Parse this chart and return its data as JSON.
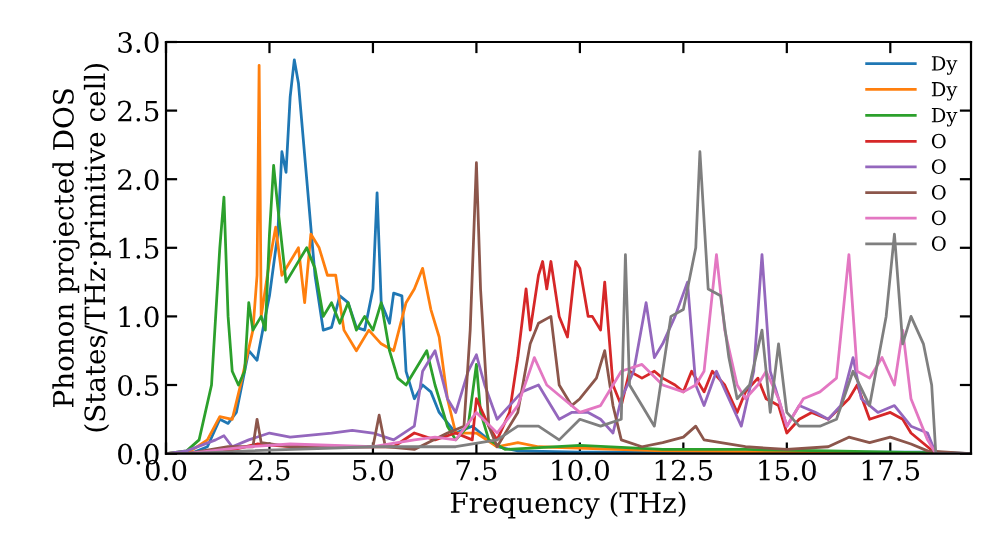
{
  "chart_data": {
    "type": "line",
    "xlabel": "Frequency (THz)",
    "ylabel": "Phonon projected DOS\n(States/THz·primitive cell)",
    "xlim": [
      0,
      19.45
    ],
    "ylim": [
      0,
      3.0
    ],
    "xticks": [
      {
        "value": 0,
        "label": "0.0"
      },
      {
        "value": 2.5,
        "label": "2.5"
      },
      {
        "value": 5,
        "label": "5.0"
      },
      {
        "value": 7.5,
        "label": "7.5"
      },
      {
        "value": 10,
        "label": "10.0"
      },
      {
        "value": 12.5,
        "label": "12.5"
      },
      {
        "value": 15,
        "label": "15.0"
      },
      {
        "value": 17.5,
        "label": "17.5"
      }
    ],
    "yticks": [
      {
        "value": 0,
        "label": "0.0"
      },
      {
        "value": 0.5,
        "label": "0.5"
      },
      {
        "value": 1,
        "label": "1.0"
      },
      {
        "value": 1.5,
        "label": "1.5"
      },
      {
        "value": 2,
        "label": "2.0"
      },
      {
        "value": 2.5,
        "label": "2.5"
      },
      {
        "value": 3,
        "label": "3.0"
      }
    ],
    "grid": false,
    "legend": "top right",
    "marker": "none",
    "line_style": "solid",
    "series": [
      {
        "name": "Dy",
        "color": "#1f77b4",
        "x": [
          0,
          0.6,
          1.0,
          1.3,
          1.5,
          1.7,
          2.0,
          2.2,
          2.4,
          2.5,
          2.7,
          2.8,
          2.9,
          3.0,
          3.1,
          3.2,
          3.4,
          3.6,
          3.8,
          4.0,
          4.2,
          4.4,
          4.6,
          4.8,
          5.0,
          5.1,
          5.2,
          5.4,
          5.5,
          5.7,
          5.8,
          6.0,
          6.2,
          6.4,
          6.6,
          7.0,
          7.4,
          7.6,
          8.0,
          8.5,
          10,
          18.6,
          19.4
        ],
        "values": [
          0,
          0,
          0.05,
          0.25,
          0.22,
          0.3,
          0.75,
          0.68,
          1.0,
          1.15,
          1.6,
          2.2,
          2.05,
          2.6,
          2.87,
          2.7,
          2.0,
          1.3,
          0.9,
          0.92,
          1.15,
          1.1,
          0.92,
          0.9,
          1.2,
          1.9,
          1.1,
          0.95,
          1.17,
          1.15,
          0.6,
          0.4,
          0.5,
          0.45,
          0.3,
          0.15,
          0.2,
          0.15,
          0.05,
          0.02,
          0.01,
          0.01,
          0
        ]
      },
      {
        "name": "Dy",
        "color": "#ff7f0e",
        "x": [
          0,
          0.6,
          1.0,
          1.3,
          1.6,
          1.8,
          2.1,
          2.2,
          2.25,
          2.3,
          2.5,
          2.65,
          2.8,
          3.0,
          3.2,
          3.35,
          3.5,
          3.7,
          3.9,
          4.1,
          4.3,
          4.6,
          4.9,
          5.2,
          5.5,
          5.8,
          6.0,
          6.2,
          6.4,
          6.6,
          6.8,
          7.0,
          7.5,
          8.0,
          8.5,
          9.0,
          12,
          19.4
        ],
        "values": [
          0,
          0.02,
          0.1,
          0.27,
          0.25,
          0.5,
          0.9,
          1.3,
          2.83,
          1.0,
          1.4,
          1.65,
          1.3,
          1.4,
          1.5,
          1.1,
          1.6,
          1.5,
          1.3,
          1.3,
          0.9,
          0.75,
          0.9,
          0.8,
          0.75,
          1.1,
          1.2,
          1.35,
          1.05,
          0.85,
          0.4,
          0.15,
          0.15,
          0.05,
          0.08,
          0.05,
          0.02,
          0
        ]
      },
      {
        "name": "Dy",
        "color": "#2ca02c",
        "x": [
          0,
          0.5,
          0.8,
          1.1,
          1.3,
          1.4,
          1.5,
          1.6,
          1.75,
          1.9,
          2.0,
          2.1,
          2.3,
          2.4,
          2.5,
          2.6,
          2.7,
          2.9,
          3.1,
          3.4,
          3.6,
          3.8,
          4.0,
          4.2,
          4.4,
          4.6,
          4.8,
          5.0,
          5.2,
          5.4,
          5.6,
          5.8,
          6.1,
          6.3,
          6.5,
          6.8,
          7.0,
          7.3,
          7.5,
          7.6,
          7.8,
          8.2,
          10,
          12,
          14,
          16,
          19.4
        ],
        "values": [
          0,
          0.02,
          0.1,
          0.5,
          1.5,
          1.87,
          1.0,
          0.6,
          0.5,
          0.6,
          1.1,
          0.9,
          1.0,
          0.9,
          1.6,
          2.1,
          1.8,
          1.25,
          1.35,
          1.5,
          1.35,
          1.0,
          1.1,
          0.95,
          1.1,
          0.9,
          1.0,
          0.9,
          1.1,
          0.75,
          0.55,
          0.5,
          0.65,
          0.75,
          0.5,
          0.2,
          0.1,
          0.2,
          0.65,
          0.3,
          0.1,
          0.03,
          0.06,
          0.03,
          0.03,
          0.02,
          0
        ]
      },
      {
        "name": "O",
        "color": "#d62728",
        "x": [
          0,
          0.5,
          1.5,
          2.2,
          3,
          5,
          5.5,
          6.0,
          6.5,
          7.0,
          7.4,
          7.5,
          7.8,
          8.0,
          8.3,
          8.5,
          8.7,
          8.8,
          9.0,
          9.1,
          9.2,
          9.3,
          9.5,
          9.7,
          9.9,
          10.0,
          10.2,
          10.3,
          10.5,
          10.6,
          10.8,
          11.0,
          11.2,
          11.5,
          11.8,
          12.0,
          12.3,
          12.5,
          12.7,
          13.0,
          13.2,
          13.5,
          13.8,
          14.0,
          14.3,
          14.5,
          14.8,
          15.0,
          15.3,
          15.6,
          16.0,
          16.5,
          16.7,
          17.0,
          17.5,
          17.8,
          18.0,
          18.4,
          18.6,
          19.4
        ],
        "values": [
          0,
          0,
          0.02,
          0.07,
          0.05,
          0.05,
          0.05,
          0.15,
          0.1,
          0.15,
          0.1,
          0.4,
          0.2,
          0.1,
          0.3,
          0.7,
          1.2,
          0.9,
          1.3,
          1.4,
          1.2,
          1.4,
          1.0,
          0.85,
          1.4,
          1.35,
          1.0,
          1.0,
          0.9,
          1.25,
          0.5,
          0.35,
          0.6,
          0.55,
          0.6,
          0.55,
          0.5,
          0.45,
          0.6,
          0.45,
          0.6,
          0.5,
          0.3,
          0.45,
          0.55,
          0.4,
          0.35,
          0.15,
          0.25,
          0.3,
          0.25,
          0.4,
          0.5,
          0.25,
          0.3,
          0.25,
          0.15,
          0.05,
          0,
          0
        ]
      },
      {
        "name": "O",
        "color": "#9467bd",
        "x": [
          0,
          0.5,
          1.2,
          1.4,
          1.6,
          2.0,
          2.5,
          3.0,
          4.0,
          4.5,
          5.0,
          5.5,
          6.0,
          6.2,
          6.5,
          6.8,
          7.0,
          7.3,
          7.5,
          7.7,
          8.0,
          8.3,
          8.6,
          9.0,
          9.2,
          9.5,
          9.8,
          10.2,
          10.5,
          10.8,
          11.0,
          11.3,
          11.6,
          11.8,
          12.0,
          12.3,
          12.6,
          12.8,
          13.0,
          13.3,
          13.6,
          13.9,
          14.2,
          14.4,
          14.6,
          14.8,
          15.0,
          15.3,
          15.7,
          16.0,
          16.3,
          16.6,
          16.8,
          17.2,
          17.6,
          18.0,
          18.4,
          18.6,
          19.4
        ],
        "values": [
          0,
          0.02,
          0.1,
          0.13,
          0.05,
          0.1,
          0.15,
          0.12,
          0.15,
          0.17,
          0.15,
          0.1,
          0.2,
          0.6,
          0.75,
          0.4,
          0.3,
          0.6,
          0.72,
          0.5,
          0.25,
          0.35,
          0.45,
          0.5,
          0.4,
          0.25,
          0.3,
          0.3,
          0.25,
          0.15,
          0.4,
          0.6,
          1.1,
          0.7,
          0.8,
          1.0,
          1.25,
          0.5,
          0.35,
          0.6,
          0.4,
          0.2,
          0.6,
          1.45,
          0.6,
          0.4,
          0.2,
          0.35,
          0.3,
          0.25,
          0.35,
          0.7,
          0.4,
          0.3,
          0.35,
          0.2,
          0.15,
          0,
          0
        ]
      },
      {
        "name": "O",
        "color": "#8c564b",
        "x": [
          0,
          0.5,
          1.5,
          2.1,
          2.2,
          2.3,
          3,
          4,
          5.0,
          5.15,
          5.3,
          6,
          6.8,
          7.2,
          7.35,
          7.5,
          7.6,
          7.8,
          8,
          8.5,
          8.8,
          9.0,
          9.3,
          9.5,
          9.8,
          10.0,
          10.4,
          10.6,
          10.8,
          11.0,
          11.5,
          12,
          12.5,
          12.8,
          13,
          14,
          15,
          16,
          16.5,
          17,
          17.5,
          18,
          18.4,
          19.4
        ],
        "values": [
          0,
          0,
          0.05,
          0.05,
          0.25,
          0.08,
          0.05,
          0.05,
          0.05,
          0.28,
          0.05,
          0.03,
          0.15,
          0.2,
          0.9,
          2.12,
          1.2,
          0.2,
          0.05,
          0.3,
          0.8,
          0.95,
          1.0,
          0.5,
          0.35,
          0.4,
          0.55,
          0.75,
          0.35,
          0.1,
          0.05,
          0.08,
          0.12,
          0.2,
          0.1,
          0.05,
          0.03,
          0.05,
          0.12,
          0.08,
          0.12,
          0.07,
          0.02,
          0
        ]
      },
      {
        "name": "O",
        "color": "#e377c2",
        "x": [
          0,
          0.5,
          2,
          3,
          5,
          6,
          6.5,
          7.0,
          7.5,
          8.0,
          8.5,
          8.9,
          9.2,
          9.6,
          10.0,
          10.5,
          11.0,
          11.5,
          12.0,
          12.5,
          12.8,
          13.0,
          13.3,
          13.5,
          13.8,
          14.0,
          14.3,
          14.5,
          14.8,
          15.0,
          15.4,
          15.8,
          16.2,
          16.5,
          16.7,
          17.0,
          17.3,
          17.6,
          17.8,
          18.0,
          18.4,
          18.6,
          19.4
        ],
        "values": [
          0,
          0,
          0.05,
          0.07,
          0.05,
          0.1,
          0.12,
          0.1,
          0.3,
          0.15,
          0.35,
          0.7,
          0.5,
          0.4,
          0.3,
          0.35,
          0.6,
          0.65,
          0.5,
          0.45,
          0.5,
          0.6,
          1.45,
          0.9,
          0.5,
          0.4,
          0.5,
          0.6,
          0.4,
          0.2,
          0.4,
          0.45,
          0.55,
          1.45,
          0.6,
          0.55,
          0.7,
          0.5,
          0.9,
          0.4,
          0.1,
          0,
          0
        ]
      },
      {
        "name": "O",
        "color": "#7f7f7f",
        "x": [
          0,
          0.5,
          2,
          5,
          7,
          8,
          8.5,
          9.0,
          9.5,
          10.0,
          10.5,
          11.0,
          11.1,
          11.2,
          11.5,
          11.8,
          12.0,
          12.2,
          12.5,
          12.8,
          12.9,
          13.1,
          13.4,
          13.6,
          13.8,
          14.1,
          14.4,
          14.6,
          14.8,
          15.0,
          15.3,
          15.8,
          16.2,
          16.6,
          17.0,
          17.4,
          17.6,
          17.8,
          18.0,
          18.3,
          18.5,
          18.6,
          19.4
        ],
        "values": [
          0,
          0,
          0.02,
          0.05,
          0.05,
          0.1,
          0.2,
          0.2,
          0.1,
          0.25,
          0.2,
          0.25,
          1.45,
          0.5,
          0.35,
          0.2,
          0.6,
          1.0,
          1.05,
          1.5,
          2.2,
          1.2,
          1.15,
          0.7,
          0.4,
          0.5,
          0.9,
          0.3,
          0.8,
          0.3,
          0.2,
          0.2,
          0.25,
          0.6,
          0.35,
          1.0,
          1.6,
          0.8,
          1.0,
          0.8,
          0.5,
          0,
          0
        ]
      }
    ]
  }
}
